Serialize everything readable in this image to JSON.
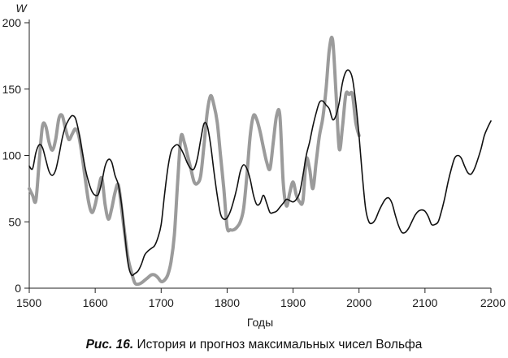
{
  "chart_data": {
    "type": "line",
    "title": "",
    "xlabel": "Годы",
    "ylabel": "W",
    "xlim": [
      1500,
      2200
    ],
    "ylim": [
      0,
      200
    ],
    "xticks": [
      1500,
      1600,
      1700,
      1800,
      1900,
      2000,
      2100,
      2200
    ],
    "yticks": [
      0,
      50,
      100,
      150,
      200
    ],
    "grid": false,
    "series": [
      {
        "style": "thin-black",
        "color": "#111111",
        "x": [
          1500,
          1505,
          1510,
          1515,
          1520,
          1525,
          1530,
          1535,
          1540,
          1545,
          1550,
          1555,
          1560,
          1565,
          1570,
          1575,
          1580,
          1585,
          1590,
          1595,
          1600,
          1605,
          1610,
          1615,
          1620,
          1625,
          1630,
          1635,
          1640,
          1645,
          1650,
          1655,
          1660,
          1665,
          1670,
          1675,
          1680,
          1685,
          1690,
          1695,
          1700,
          1705,
          1710,
          1715,
          1720,
          1725,
          1730,
          1735,
          1740,
          1745,
          1750,
          1755,
          1760,
          1765,
          1770,
          1775,
          1780,
          1785,
          1790,
          1795,
          1800,
          1805,
          1810,
          1815,
          1820,
          1825,
          1830,
          1835,
          1840,
          1845,
          1850,
          1855,
          1860,
          1865,
          1870,
          1875,
          1880,
          1885,
          1890,
          1895,
          1900,
          1905,
          1910,
          1915,
          1920,
          1925,
          1930,
          1935,
          1940,
          1945,
          1950,
          1955,
          1960,
          1965,
          1970,
          1975,
          1980,
          1985,
          1990,
          1995,
          2000,
          2005,
          2010,
          2015,
          2020,
          2025,
          2030,
          2035,
          2040,
          2045,
          2050,
          2055,
          2060,
          2065,
          2070,
          2075,
          2080,
          2085,
          2090,
          2095,
          2100,
          2105,
          2110,
          2115,
          2120,
          2125,
          2130,
          2135,
          2140,
          2145,
          2150,
          2155,
          2160,
          2165,
          2170,
          2175,
          2180,
          2185,
          2190,
          2195,
          2200
        ],
        "y": [
          92,
          90,
          102,
          108,
          106,
          97,
          88,
          85,
          89,
          100,
          113,
          122,
          127,
          130,
          128,
          118,
          104,
          90,
          80,
          73,
          70,
          71,
          80,
          92,
          97,
          95,
          85,
          78,
          63,
          40,
          18,
          10,
          11,
          13,
          18,
          25,
          28,
          30,
          32,
          38,
          48,
          70,
          90,
          103,
          107,
          108,
          105,
          100,
          94,
          90,
          90,
          98,
          112,
          124,
          122,
          108,
          88,
          70,
          56,
          52,
          53,
          58,
          66,
          76,
          88,
          93,
          90,
          82,
          70,
          63,
          64,
          70,
          64,
          57,
          57,
          58,
          61,
          64,
          67,
          66,
          65,
          67,
          72,
          85,
          100,
          110,
          122,
          132,
          140,
          141,
          138,
          135,
          127,
          130,
          140,
          155,
          163,
          164,
          158,
          140,
          115,
          85,
          60,
          50,
          49,
          52,
          58,
          63,
          67,
          68,
          64,
          55,
          47,
          42,
          42,
          45,
          50,
          55,
          58,
          59,
          58,
          54,
          48,
          48,
          50,
          58,
          68,
          80,
          90,
          98,
          100,
          98,
          92,
          87,
          86,
          90,
          97,
          105,
          115,
          121,
          126
        ]
      },
      {
        "style": "thick-gray",
        "color": "#9b9b9b",
        "x": [
          1500,
          1505,
          1510,
          1515,
          1520,
          1525,
          1530,
          1535,
          1540,
          1545,
          1550,
          1555,
          1560,
          1565,
          1570,
          1575,
          1580,
          1585,
          1590,
          1595,
          1600,
          1605,
          1610,
          1615,
          1620,
          1625,
          1630,
          1635,
          1640,
          1645,
          1650,
          1655,
          1660,
          1665,
          1670,
          1675,
          1680,
          1685,
          1690,
          1695,
          1700,
          1705,
          1710,
          1715,
          1720,
          1725,
          1730,
          1735,
          1740,
          1745,
          1750,
          1755,
          1760,
          1765,
          1770,
          1775,
          1780,
          1785,
          1790,
          1795,
          1800,
          1805,
          1810,
          1815,
          1820,
          1825,
          1830,
          1835,
          1840,
          1845,
          1850,
          1855,
          1860,
          1865,
          1870,
          1875,
          1880,
          1885,
          1890,
          1895,
          1900,
          1905,
          1910,
          1915,
          1920,
          1925,
          1930,
          1935,
          1940,
          1945,
          1950,
          1955,
          1960,
          1965,
          1970,
          1975,
          1980,
          1985,
          1990,
          1995,
          2000
        ],
        "y": [
          75,
          70,
          66,
          95,
          122,
          122,
          110,
          104,
          112,
          128,
          130,
          120,
          112,
          116,
          120,
          115,
          100,
          82,
          65,
          57,
          63,
          75,
          83,
          63,
          52,
          60,
          72,
          78,
          60,
          40,
          22,
          12,
          4,
          3,
          4,
          6,
          8,
          10,
          10,
          8,
          5,
          6,
          10,
          20,
          40,
          80,
          114,
          110,
          100,
          90,
          80,
          79,
          85,
          108,
          133,
          145,
          138,
          125,
          100,
          75,
          46,
          44,
          44,
          46,
          50,
          60,
          85,
          115,
          130,
          127,
          118,
          106,
          95,
          90,
          110,
          130,
          130,
          80,
          62,
          72,
          80,
          70,
          65,
          66,
          97,
          90,
          75,
          95,
          115,
          128,
          150,
          180,
          187,
          148,
          105,
          122,
          146,
          146,
          146,
          125,
          115
        ]
      }
    ]
  },
  "caption": {
    "figure_label": "Рис. 16.",
    "text": "История и прогноз максимальных чисел Вольфа"
  }
}
